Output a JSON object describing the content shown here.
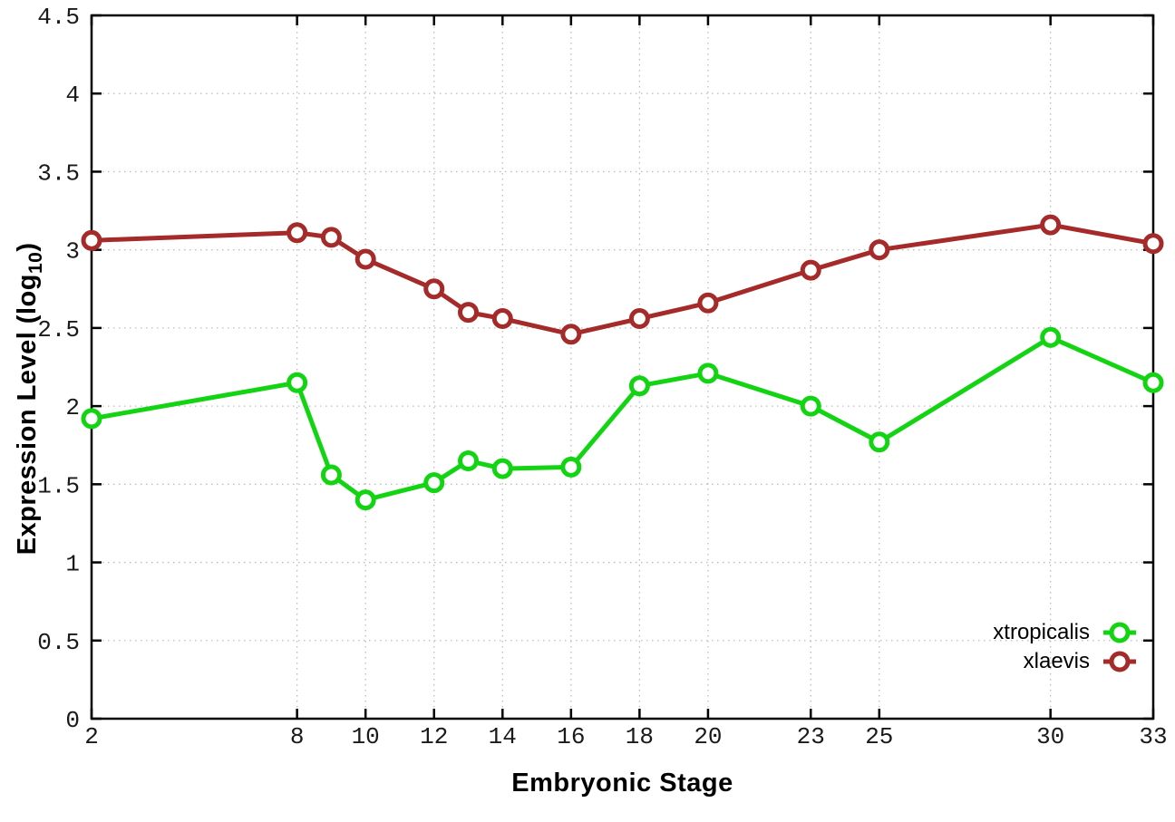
{
  "chart_data": {
    "type": "line",
    "title": "",
    "xlabel": "Embryonic Stage",
    "ylabel": {
      "prefix": "Expression Level (log",
      "sub": "10",
      "suffix": ")"
    },
    "x": [
      2,
      8,
      9,
      10,
      12,
      13,
      14,
      16,
      18,
      20,
      23,
      25,
      30,
      33
    ],
    "xlim": [
      2,
      33
    ],
    "ylim": [
      0,
      4.5
    ],
    "x_tick_labels": [
      "2",
      "8",
      "10",
      "12",
      "14",
      "16",
      "18",
      "20",
      "23",
      "25",
      "30",
      "33"
    ],
    "y_tick_labels": [
      "0",
      "0.5",
      "1",
      "1.5",
      "2",
      "2.5",
      "3",
      "3.5",
      "4",
      "4.5"
    ],
    "grid": true,
    "legend_position": "bottom-right",
    "series": [
      {
        "name": "xtropicalis",
        "color": "#12d412",
        "values": [
          1.92,
          2.15,
          1.56,
          1.4,
          1.51,
          1.65,
          1.6,
          1.61,
          2.13,
          2.21,
          2.0,
          1.77,
          2.44,
          2.15
        ]
      },
      {
        "name": "xlaevis",
        "color": "#a52a2a",
        "values": [
          3.06,
          3.11,
          3.08,
          2.94,
          2.75,
          2.6,
          2.56,
          2.46,
          2.56,
          2.66,
          2.87,
          3.0,
          3.16,
          3.04
        ]
      }
    ]
  },
  "style_colors": {
    "border": "#000000",
    "grid": "#bcbcbc",
    "tick_text": "#1a1a1a",
    "marker_fill": "#ffffff"
  }
}
